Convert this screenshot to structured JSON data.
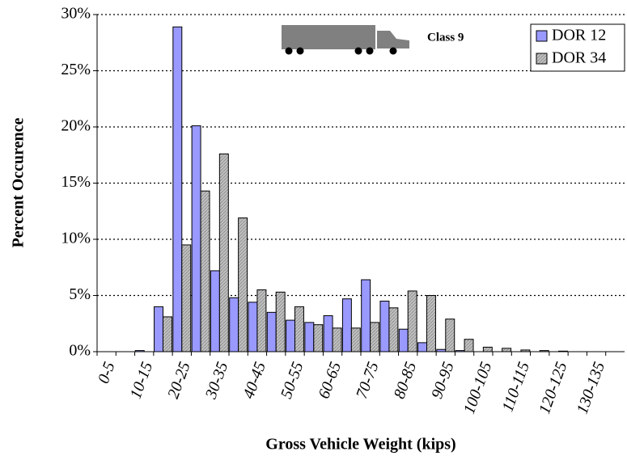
{
  "chart_data": {
    "type": "bar",
    "annotation": "Class 9",
    "x_label": "Gross Vehicle Weight (kips)",
    "y_label": "Percent Occurence",
    "categories": [
      "0-5",
      null,
      "10-15",
      null,
      "20-25",
      null,
      "30-35",
      null,
      "40-45",
      null,
      "50-55",
      null,
      "60-65",
      null,
      "70-75",
      null,
      "80-85",
      null,
      "90-95",
      null,
      "100-105",
      null,
      "110-115",
      null,
      "120-125",
      null,
      "130-135",
      null
    ],
    "series": [
      {
        "name": "DOR 12",
        "color": "#9999ff",
        "values": [
          0,
          0,
          0.1,
          4.0,
          28.9,
          20.1,
          7.2,
          4.8,
          4.4,
          3.5,
          2.8,
          2.6,
          3.2,
          4.7,
          6.4,
          4.5,
          2.0,
          0.8,
          0.2,
          0.1,
          0,
          0,
          0,
          0,
          0,
          0,
          0,
          0
        ]
      },
      {
        "name": "DOR 34",
        "color": "#c0c0c0",
        "values": [
          0,
          0,
          0,
          3.1,
          9.5,
          14.3,
          17.6,
          11.9,
          5.5,
          5.3,
          4.0,
          2.4,
          2.1,
          2.1,
          2.6,
          3.9,
          5.4,
          5.0,
          2.9,
          1.1,
          0.4,
          0.3,
          0.15,
          0.1,
          0.05,
          0,
          0,
          0
        ]
      }
    ],
    "ylim": [
      0,
      30
    ],
    "yticks": [
      {
        "value": 0,
        "label": "0%"
      },
      {
        "value": 5,
        "label": "5%"
      },
      {
        "value": 10,
        "label": "10%"
      },
      {
        "value": 15,
        "label": "15%"
      },
      {
        "value": 20,
        "label": "20%"
      },
      {
        "value": 25,
        "label": "25%"
      },
      {
        "value": 30,
        "label": "30%"
      }
    ],
    "grid": true,
    "legend": "top-right"
  }
}
